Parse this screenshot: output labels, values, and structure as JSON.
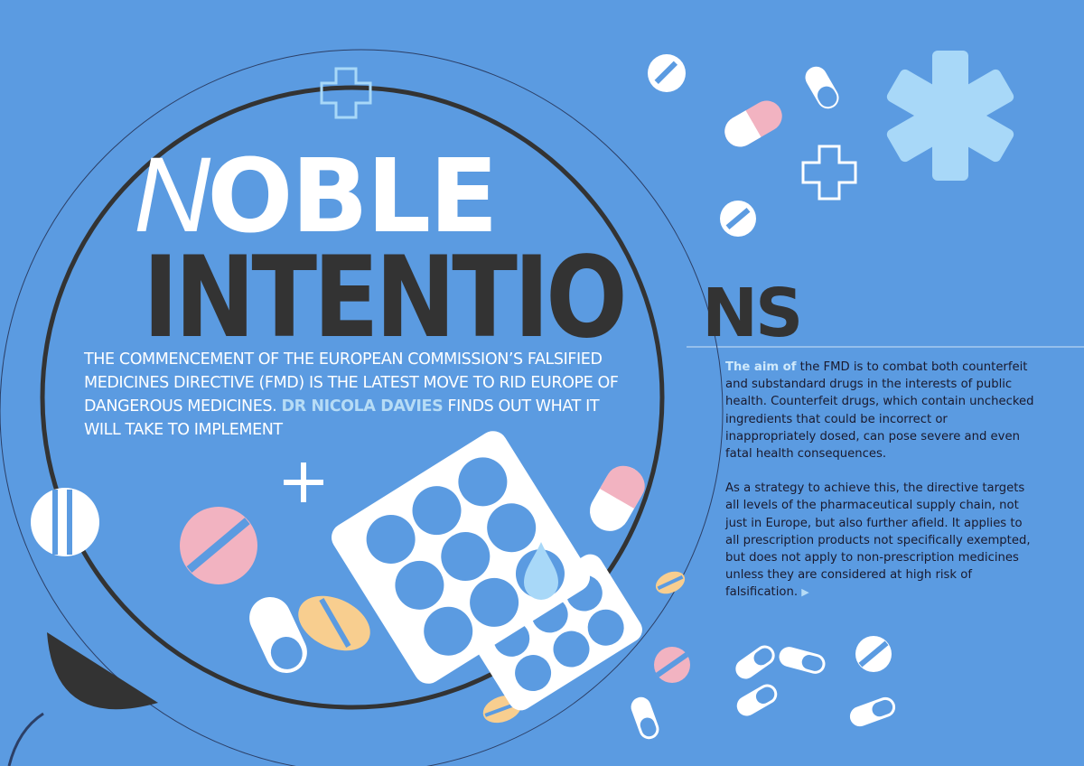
{
  "headline": {
    "initial": "N",
    "line1_rest": "OBLE",
    "line2_big": "INTENTIO",
    "line2_small": "NS"
  },
  "standfirst": {
    "text": "The commencement of the European Commission’s Falsified Medicines Directive (FMD) is the latest move to rid Europe of dangerous medicines.",
    "author": "Dr Nicola Davies",
    "after_author": "finds out what it will take to implement"
  },
  "body": {
    "p1_lead": "The aim of",
    "p1_rest": "the FMD is to combat both counterfeit and substandard drugs in the interests of public health. Counterfeit drugs, which contain unchecked ingredients that could be incorrect or inappropriately dosed, can pose severe and even fatal health consequences.",
    "p2": "As a strategy to achieve this, the directive targets all levels of the pharmaceutical supply chain, not just in Europe, but also further afield. It applies to all prescription products not specifically exempted, but does not apply to non-prescription medicines unless they are considered at high risk of falsification.",
    "continue_icon": "right-triangle-icon"
  },
  "colors": {
    "background": "#5b9be1",
    "dark": "#333333",
    "pink": "#f2b3c1",
    "yellow": "#f8ce8f",
    "light_blue": "#a8d8f8",
    "white": "#ffffff"
  }
}
